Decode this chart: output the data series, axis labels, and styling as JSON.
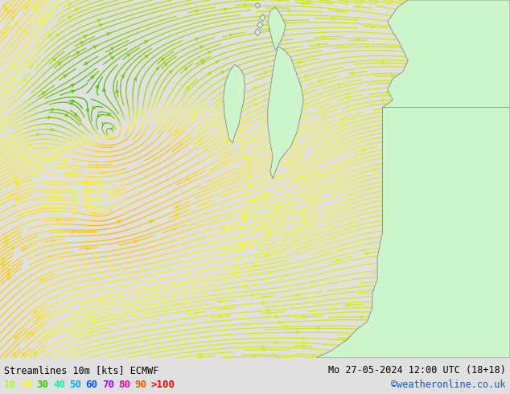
{
  "title_left": "Streamlines 10m [kts] ECMWF",
  "title_right": "Mo 27-05-2024 12:00 UTC (18+18)",
  "watermark": "©weatheronline.co.uk",
  "legend_labels": [
    "10",
    "20",
    "30",
    "40",
    "50",
    "60",
    "70",
    "80",
    "90",
    ">100"
  ],
  "legend_colors": [
    "#aaff00",
    "#ffff00",
    "#33cc00",
    "#00ffaa",
    "#00aaff",
    "#0055ff",
    "#aa00ff",
    "#ff00aa",
    "#ff5500",
    "#ff0000"
  ],
  "bg_color": "#e0e0e0",
  "land_color": "#ccf5cc",
  "sea_color": "#e8e8e8",
  "fig_width": 6.34,
  "fig_height": 4.9,
  "dpi": 100,
  "bottom_bar_color": "#ffffff",
  "bottom_bar_height": 0.092,
  "title_fontsize": 8.5,
  "legend_fontsize": 9,
  "watermark_color": "#1155cc",
  "coast_color": "#888888"
}
